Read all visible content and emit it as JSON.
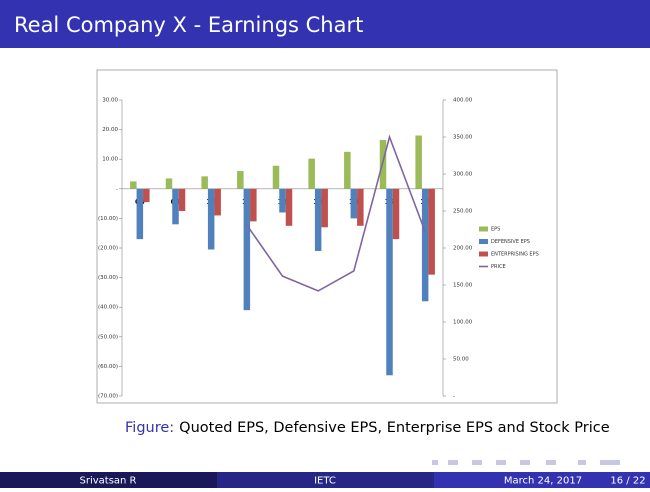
{
  "header": {
    "title": "Real Company X - Earnings Chart"
  },
  "chart_data": {
    "type": "bar",
    "categories": [
      "08",
      "09",
      "10",
      "11",
      "12",
      "13",
      "14",
      "15",
      "16"
    ],
    "series": [
      {
        "name": "EPS",
        "color": "#9bbb59",
        "values": [
          2.5,
          3.5,
          4.2,
          6,
          7.8,
          10.2,
          12.5,
          16.5,
          18
        ]
      },
      {
        "name": "DEFENSIVE EPS",
        "color": "#4f81bd",
        "values": [
          -17,
          -12,
          -20.5,
          -41,
          -8,
          -21,
          -10,
          -63,
          -38
        ]
      },
      {
        "name": "ENTERPRISING EPS",
        "color": "#c0504d",
        "values": [
          -4.5,
          -7.5,
          -9,
          -11,
          -12.5,
          -13,
          -12.5,
          -17,
          -29
        ]
      },
      {
        "name": "PRICE",
        "color": "#8064a2",
        "type": "line",
        "axis": "y2",
        "values": [
          null,
          null,
          null,
          231,
          162,
          142,
          169,
          350,
          222
        ]
      }
    ],
    "ylim": [
      -70,
      30
    ],
    "yticks": [
      {
        "value": -70,
        "label": "(70.00)"
      },
      {
        "value": -60,
        "label": "(60.00)"
      },
      {
        "value": -50,
        "label": "(50.00)"
      },
      {
        "value": -40,
        "label": "(40.00)"
      },
      {
        "value": -30,
        "label": "(30.00)"
      },
      {
        "value": -20,
        "label": "(20.00)"
      },
      {
        "value": -10,
        "label": "(10.00)"
      },
      {
        "value": 0,
        "label": "-"
      },
      {
        "value": 10,
        "label": "10.00"
      },
      {
        "value": 20,
        "label": "20.00"
      },
      {
        "value": 30,
        "label": "30.00"
      }
    ],
    "y2lim": [
      0,
      400
    ],
    "y2ticks": [
      {
        "value": 0,
        "label": "-"
      },
      {
        "value": 50,
        "label": "50.00"
      },
      {
        "value": 100,
        "label": "100.00"
      },
      {
        "value": 150,
        "label": "150.00"
      },
      {
        "value": 200,
        "label": "200.00"
      },
      {
        "value": 250,
        "label": "250.00"
      },
      {
        "value": 300,
        "label": "300.00"
      },
      {
        "value": 350,
        "label": "350.00"
      },
      {
        "value": 400,
        "label": "400.00"
      }
    ],
    "legend": "right"
  },
  "caption": {
    "label": "Figure:",
    "text": "Quoted EPS, Defensive EPS, Enterprise EPS and Stock Price"
  },
  "footer": {
    "author": "Srivatsan R",
    "institute": "IETC",
    "date": "March 24, 2017",
    "page": "16 / 22"
  }
}
